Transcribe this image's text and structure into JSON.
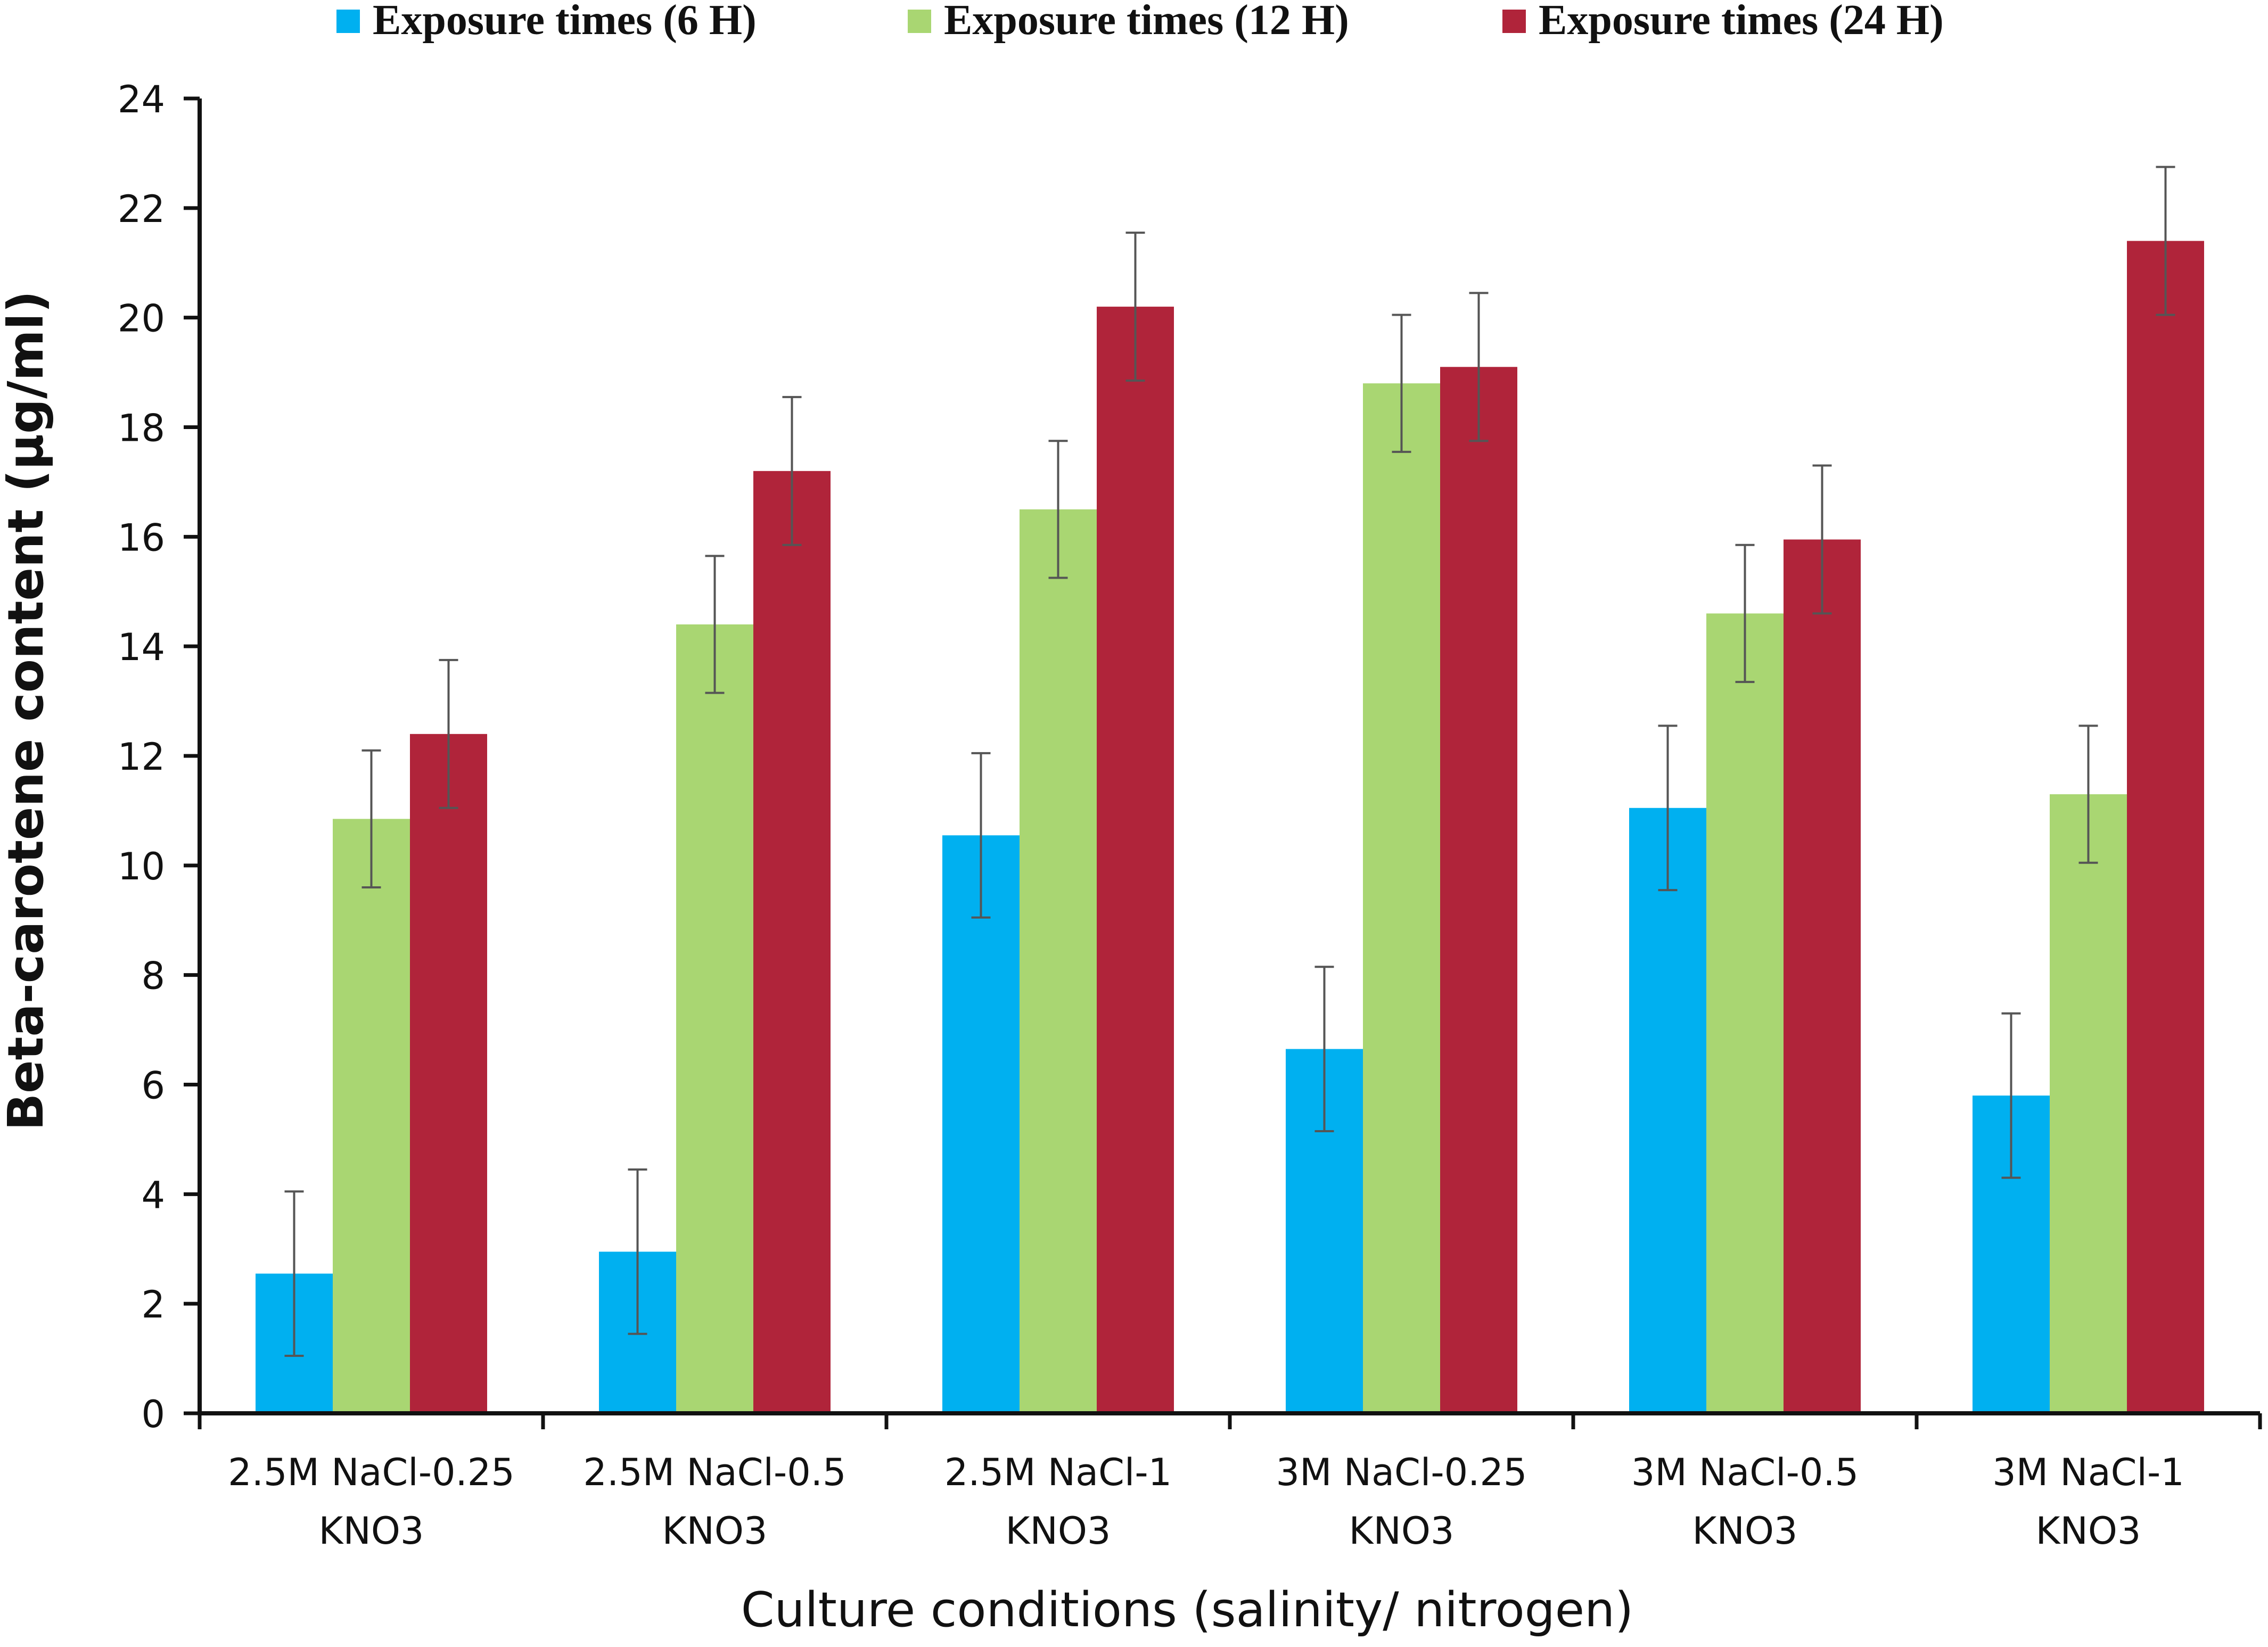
{
  "chart_data": {
    "type": "bar",
    "title": "",
    "xlabel": "Culture conditions (salinity/ nitrogen)",
    "ylabel": "Beta-carotene content (µg/ml)",
    "ylim": [
      0,
      24
    ],
    "yticks": [
      0,
      2,
      4,
      6,
      8,
      10,
      12,
      14,
      16,
      18,
      20,
      22,
      24
    ],
    "legend_position": "top",
    "categories": [
      [
        "2.5M NaCl-0.25",
        "KNO3"
      ],
      [
        "2.5M NaCl-0.5",
        "KNO3"
      ],
      [
        "2.5M NaCl-1",
        "KNO3"
      ],
      [
        "3M NaCl-0.25",
        "KNO3"
      ],
      [
        "3M NaCl-0.5",
        "KNO3"
      ],
      [
        "3M NaCl-1",
        "KNO3"
      ]
    ],
    "series": [
      {
        "name": "Exposure times (6 H)",
        "color": "#00b0f0",
        "values": [
          2.55,
          2.95,
          10.55,
          6.65,
          11.05,
          5.8
        ],
        "errors": [
          1.5,
          1.5,
          1.5,
          1.5,
          1.5,
          1.5
        ]
      },
      {
        "name": "Exposure times (12 H)",
        "color": "#a9d672",
        "values": [
          10.85,
          14.4,
          16.5,
          18.8,
          14.6,
          11.3
        ],
        "errors": [
          1.25,
          1.25,
          1.25,
          1.25,
          1.25,
          1.25
        ]
      },
      {
        "name": "Exposure times (24 H)",
        "color": "#b0243a",
        "values": [
          12.4,
          17.2,
          20.2,
          19.1,
          15.95,
          21.4
        ],
        "errors": [
          1.35,
          1.35,
          1.35,
          1.35,
          1.35,
          1.35
        ]
      }
    ]
  }
}
